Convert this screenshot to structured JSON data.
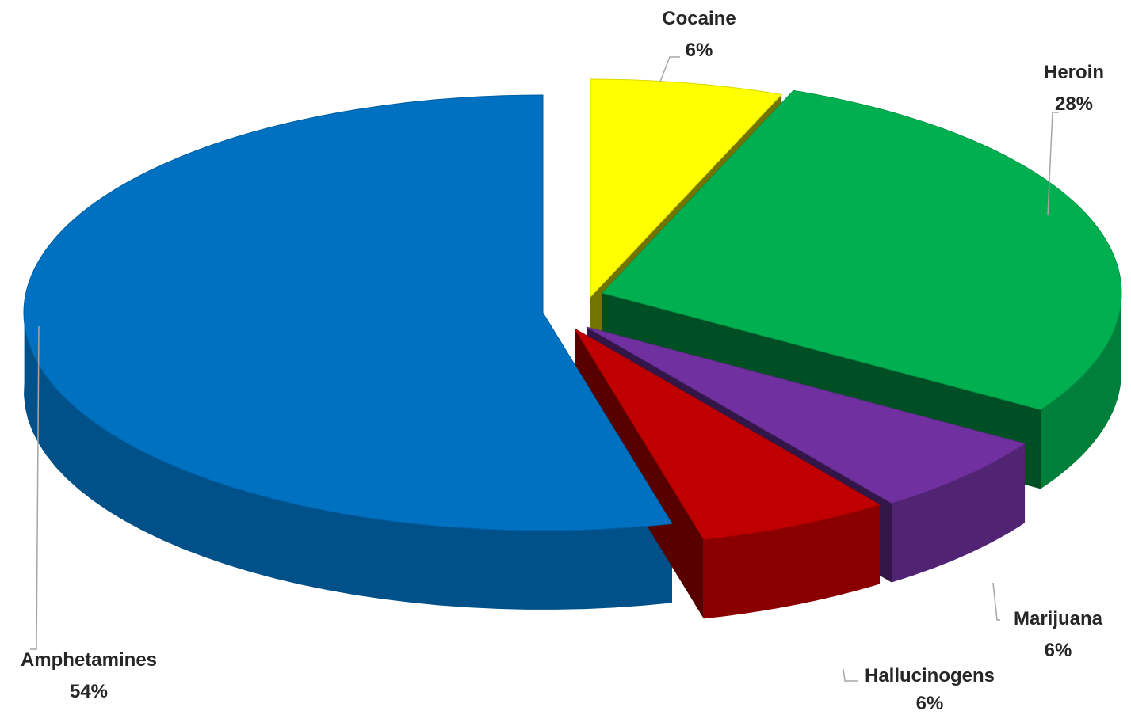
{
  "chart_data": {
    "type": "pie",
    "title": "",
    "categories": [
      "Cocaine",
      "Heroin",
      "Marijuana",
      "Hallucinogens",
      "Amphetamines"
    ],
    "values": [
      6,
      28,
      6,
      6,
      54
    ],
    "percent_labels": [
      "6%",
      "28%",
      "6%",
      "6%",
      "54%"
    ],
    "colors": [
      "#FFFF00",
      "#00B050",
      "#7030A0",
      "#C00000",
      "#0070C0"
    ],
    "legend": "none",
    "data_labels": "outside-with-leader-lines",
    "style": "3d-exploded"
  }
}
